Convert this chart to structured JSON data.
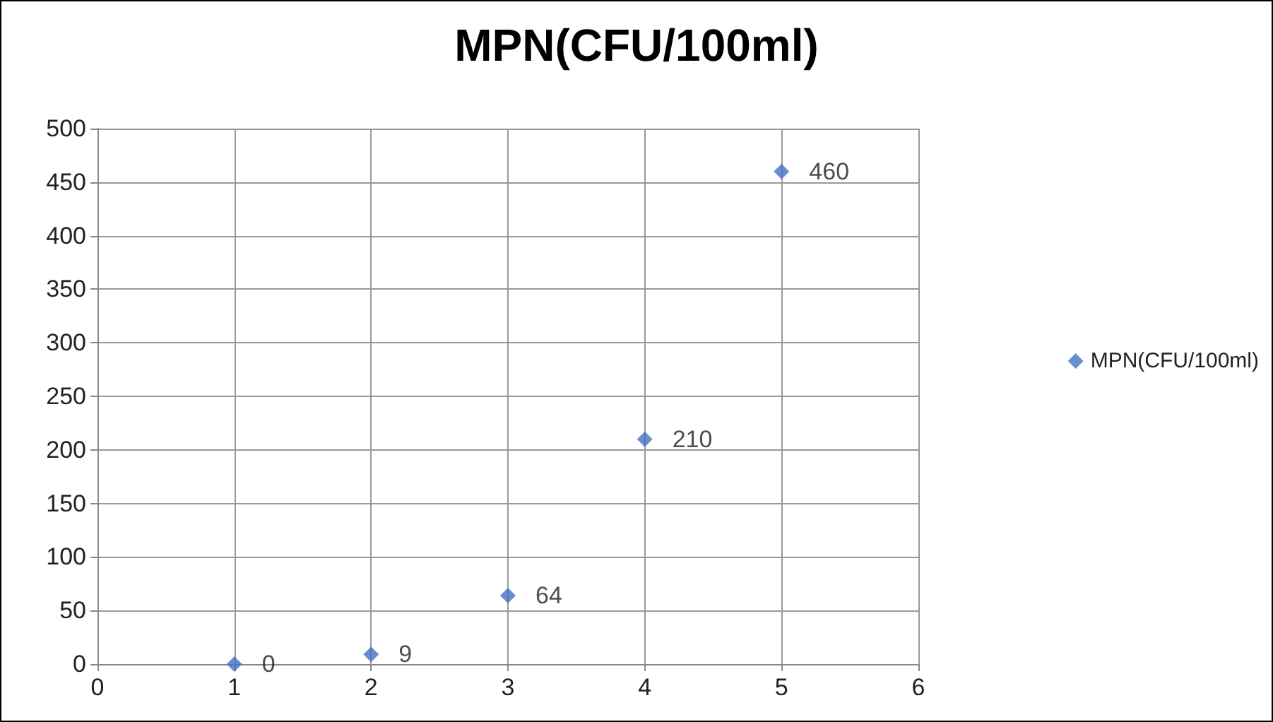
{
  "chart_data": {
    "type": "scatter",
    "title": "MPN(CFU/100ml)",
    "x": [
      1,
      2,
      3,
      4,
      5
    ],
    "series": [
      {
        "name": "MPN(CFU/100ml)",
        "color": "#4472c4",
        "values": [
          0,
          9,
          64,
          210,
          460
        ]
      }
    ],
    "xlim": [
      0,
      6
    ],
    "xticks": [
      0,
      1,
      2,
      3,
      4,
      5,
      6
    ],
    "ylim": [
      0,
      500
    ],
    "yticks": [
      0,
      50,
      100,
      150,
      200,
      250,
      300,
      350,
      400,
      450,
      500
    ],
    "grid": true,
    "legend": "right",
    "marker": "diamond",
    "data_labels": true
  }
}
